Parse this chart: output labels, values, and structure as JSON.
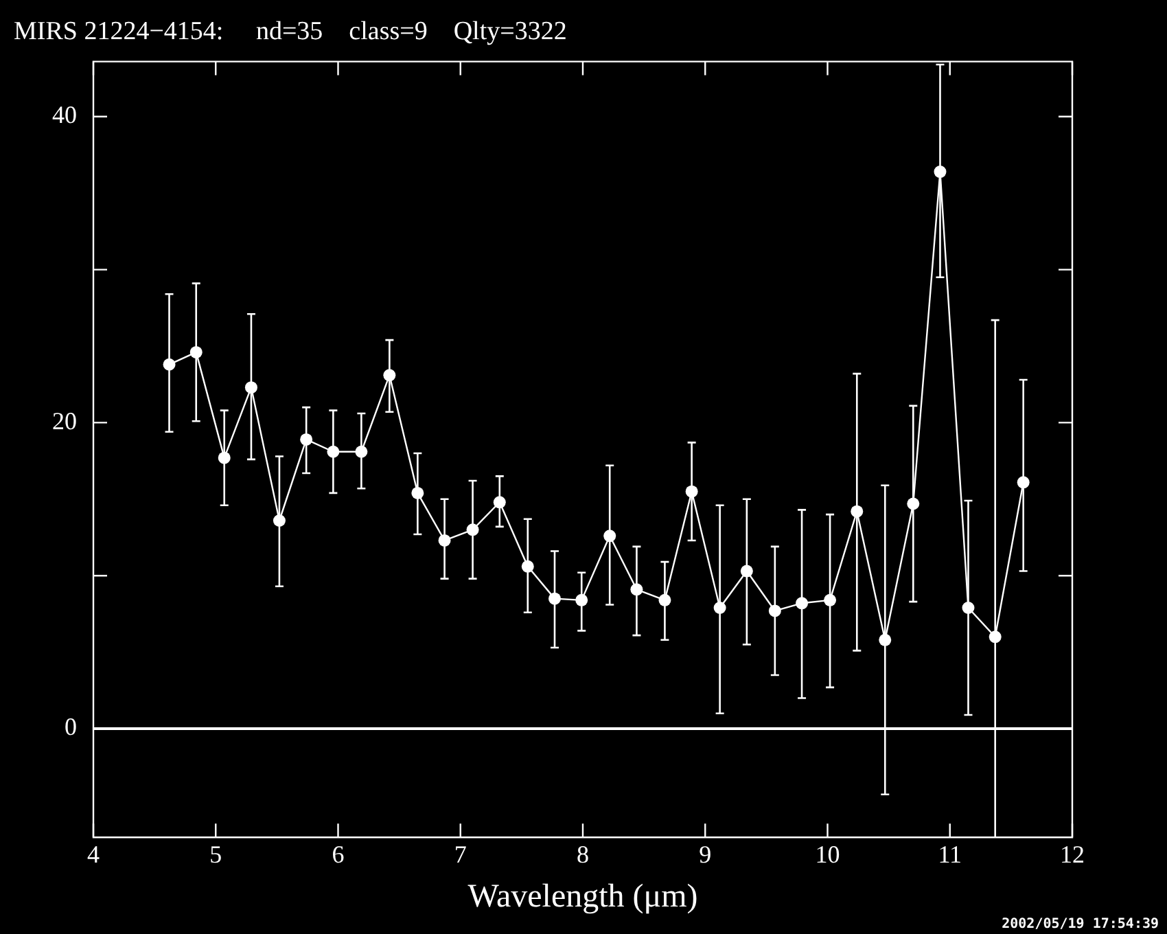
{
  "chart_data": {
    "type": "line",
    "title": "MIRS 21224−4154:     nd=35    class=9    Qlty=3322",
    "xlabel": "Wavelength (μm)",
    "x": [
      4.62,
      4.84,
      5.07,
      5.29,
      5.52,
      5.74,
      5.96,
      6.19,
      6.42,
      6.65,
      6.87,
      7.1,
      7.32,
      7.55,
      7.77,
      7.99,
      8.22,
      8.44,
      8.67,
      8.89,
      9.12,
      9.34,
      9.57,
      9.79,
      10.02,
      10.24,
      10.47,
      10.7,
      10.92,
      11.15,
      11.37,
      11.6
    ],
    "series": [
      {
        "color": "#ffffff",
        "values": [
          23.8,
          24.6,
          17.7,
          22.3,
          13.6,
          18.9,
          18.1,
          18.1,
          23.1,
          15.4,
          12.3,
          13.0,
          14.8,
          10.6,
          8.5,
          8.4,
          12.6,
          9.1,
          8.4,
          15.5,
          7.9,
          10.3,
          7.7,
          8.2,
          8.4,
          14.2,
          5.8,
          14.7,
          36.4,
          7.9,
          6.0,
          16.1
        ],
        "errors": [
          [
            19.4,
            28.4
          ],
          [
            20.1,
            29.1
          ],
          [
            14.6,
            20.8
          ],
          [
            17.6,
            27.1
          ],
          [
            9.3,
            17.8
          ],
          [
            16.7,
            21.0
          ],
          [
            15.4,
            20.8
          ],
          [
            15.7,
            20.6
          ],
          [
            20.7,
            25.4
          ],
          [
            12.7,
            18.0
          ],
          [
            9.8,
            15.0
          ],
          [
            9.8,
            16.2
          ],
          [
            13.2,
            16.5
          ],
          [
            7.6,
            13.7
          ],
          [
            5.3,
            11.6
          ],
          [
            6.4,
            10.2
          ],
          [
            8.1,
            17.2
          ],
          [
            6.1,
            11.9
          ],
          [
            5.8,
            10.9
          ],
          [
            12.3,
            18.7
          ],
          [
            1.0,
            14.6
          ],
          [
            5.5,
            15.0
          ],
          [
            3.5,
            11.9
          ],
          [
            2.0,
            14.3
          ],
          [
            2.7,
            14.0
          ],
          [
            5.1,
            23.2
          ],
          [
            -4.3,
            15.9
          ],
          [
            8.3,
            21.1
          ],
          [
            29.5,
            43.4
          ],
          [
            0.9,
            14.9
          ],
          [
            -7.1,
            26.7
          ],
          [
            10.3,
            22.8
          ]
        ]
      }
    ],
    "xlim": [
      4,
      12
    ],
    "xticks": [
      4,
      5,
      6,
      7,
      8,
      9,
      10,
      11,
      12
    ],
    "ylim": [
      -7.1,
      43.6
    ],
    "yticks": [
      0,
      {
        "value": 10,
        "label": null
      },
      20,
      {
        "value": 30,
        "label": null
      },
      40
    ],
    "ref_lines": [
      {
        "axis": "y",
        "value": 0,
        "color": "#ffffff"
      }
    ],
    "annotations": [
      "2002/05/19 17:54:39"
    ],
    "marker": "circle",
    "line_style": "solid",
    "grid": false,
    "legend": false
  }
}
